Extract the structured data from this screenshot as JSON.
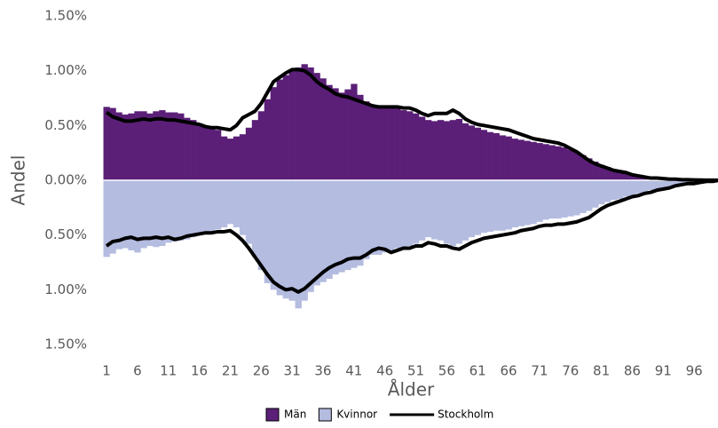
{
  "chart_data": {
    "type": "bar",
    "x_label": "Ålder",
    "y_label": "Andel",
    "categories": [
      1,
      null,
      null,
      null,
      null,
      6,
      null,
      null,
      null,
      null,
      11,
      null,
      null,
      null,
      null,
      16,
      null,
      null,
      null,
      null,
      21,
      null,
      null,
      null,
      null,
      26,
      null,
      null,
      null,
      null,
      31,
      null,
      null,
      null,
      null,
      36,
      null,
      null,
      null,
      null,
      41,
      null,
      null,
      null,
      null,
      46,
      null,
      null,
      null,
      null,
      51,
      null,
      null,
      null,
      null,
      56,
      null,
      null,
      null,
      null,
      61,
      null,
      null,
      null,
      null,
      66,
      null,
      null,
      null,
      null,
      71,
      null,
      null,
      null,
      null,
      76,
      null,
      null,
      null,
      null,
      81,
      null,
      null,
      null,
      null,
      86,
      null,
      null,
      null,
      null,
      91,
      null,
      null,
      null,
      null,
      96,
      null,
      null,
      null,
      null
    ],
    "ylim": [
      -1.5,
      1.5
    ],
    "yticks": [
      {
        "value": -1.5,
        "label": "1.50%"
      },
      {
        "value": -1.0,
        "label": "1.00%"
      },
      {
        "value": -0.5,
        "label": "0.50%"
      },
      {
        "value": 0,
        "label": "0.00%"
      },
      {
        "value": 0.5,
        "label": "0.50%"
      },
      {
        "value": 1.0,
        "label": "1.00%"
      },
      {
        "value": 1.5,
        "label": "1.50%"
      }
    ],
    "grid": false,
    "legend": "bottom",
    "series": [
      {
        "name": "Män",
        "type": "bar",
        "color": "#5b1f78",
        "values": [
          0.67,
          0.66,
          0.62,
          0.6,
          0.61,
          0.63,
          0.63,
          0.61,
          0.63,
          0.64,
          0.62,
          0.62,
          0.61,
          0.57,
          0.55,
          0.52,
          0.5,
          0.47,
          0.46,
          0.4,
          0.38,
          0.4,
          0.42,
          0.48,
          0.55,
          0.63,
          0.74,
          0.85,
          0.92,
          0.96,
          1.0,
          1.03,
          1.06,
          1.03,
          0.98,
          0.93,
          0.87,
          0.84,
          0.8,
          0.83,
          0.88,
          0.78,
          0.72,
          0.68,
          0.67,
          0.67,
          0.66,
          0.66,
          0.64,
          0.63,
          0.61,
          0.58,
          0.55,
          0.54,
          0.55,
          0.54,
          0.55,
          0.56,
          0.52,
          0.5,
          0.48,
          0.46,
          0.44,
          0.43,
          0.41,
          0.4,
          0.38,
          0.37,
          0.36,
          0.35,
          0.34,
          0.33,
          0.32,
          0.31,
          0.3,
          0.28,
          0.26,
          0.23,
          0.2,
          0.17,
          0.14,
          0.12,
          0.1,
          0.08,
          0.07,
          0.06,
          0.05,
          0.04,
          0.03,
          0.02,
          0.02,
          0.015,
          0.01,
          0.01,
          0.01,
          0.005,
          0.003,
          0.002,
          0.001,
          0.001
        ]
      },
      {
        "name": "Kvinnor",
        "type": "bar",
        "color": "#b4bce0",
        "values": [
          -0.7,
          -0.67,
          -0.63,
          -0.62,
          -0.64,
          -0.66,
          -0.62,
          -0.6,
          -0.61,
          -0.6,
          -0.57,
          -0.56,
          -0.55,
          -0.54,
          -0.52,
          -0.5,
          -0.48,
          -0.47,
          -0.45,
          -0.43,
          -0.4,
          -0.43,
          -0.5,
          -0.58,
          -0.7,
          -0.82,
          -0.94,
          -1.0,
          -1.05,
          -1.08,
          -1.1,
          -1.17,
          -1.1,
          -1.02,
          -0.96,
          -0.93,
          -0.9,
          -0.86,
          -0.84,
          -0.82,
          -0.8,
          -0.78,
          -0.72,
          -0.68,
          -0.68,
          -0.66,
          -0.64,
          -0.62,
          -0.62,
          -0.6,
          -0.58,
          -0.55,
          -0.52,
          -0.54,
          -0.55,
          -0.58,
          -0.6,
          -0.58,
          -0.55,
          -0.52,
          -0.5,
          -0.48,
          -0.47,
          -0.46,
          -0.46,
          -0.45,
          -0.43,
          -0.42,
          -0.41,
          -0.4,
          -0.38,
          -0.36,
          -0.35,
          -0.35,
          -0.34,
          -0.33,
          -0.32,
          -0.3,
          -0.28,
          -0.25,
          -0.22,
          -0.2,
          -0.18,
          -0.17,
          -0.15,
          -0.14,
          -0.12,
          -0.11,
          -0.09,
          -0.08,
          -0.07,
          -0.06,
          -0.05,
          -0.04,
          -0.03,
          -0.03,
          -0.02,
          -0.01,
          -0.01,
          -0.005
        ]
      },
      {
        "name": "Stockholm",
        "type": "line",
        "color": "#000000",
        "values": [
          0.62,
          0.58,
          0.56,
          0.54,
          0.54,
          0.55,
          0.56,
          0.55,
          0.56,
          0.56,
          0.55,
          0.55,
          0.54,
          0.53,
          0.52,
          0.51,
          0.49,
          0.48,
          0.48,
          0.47,
          0.46,
          0.5,
          0.57,
          0.6,
          0.63,
          0.7,
          0.8,
          0.9,
          0.94,
          0.98,
          1.01,
          1.01,
          1.0,
          0.96,
          0.9,
          0.86,
          0.83,
          0.79,
          0.77,
          0.76,
          0.74,
          0.72,
          0.7,
          0.68,
          0.67,
          0.67,
          0.67,
          0.67,
          0.66,
          0.66,
          0.64,
          0.61,
          0.59,
          0.61,
          0.61,
          0.61,
          0.64,
          0.61,
          0.56,
          0.53,
          0.51,
          0.5,
          0.49,
          0.48,
          0.47,
          0.46,
          0.44,
          0.42,
          0.4,
          0.38,
          0.37,
          0.36,
          0.35,
          0.34,
          0.32,
          0.29,
          0.26,
          0.22,
          0.18,
          0.15,
          0.13,
          0.11,
          0.09,
          0.08,
          0.07,
          0.05,
          0.04,
          0.03,
          0.02,
          0.02,
          0.015,
          0.01,
          0.01,
          0.005,
          0.005,
          0.003,
          0.002,
          0.001,
          0.001,
          0
        ],
        "values_below": [
          -0.6,
          -0.56,
          -0.55,
          -0.53,
          -0.52,
          -0.54,
          -0.53,
          -0.53,
          -0.52,
          -0.53,
          -0.52,
          -0.54,
          -0.53,
          -0.51,
          -0.5,
          -0.49,
          -0.48,
          -0.48,
          -0.47,
          -0.47,
          -0.46,
          -0.5,
          -0.55,
          -0.62,
          -0.7,
          -0.78,
          -0.86,
          -0.93,
          -0.97,
          -1.0,
          -0.99,
          -1.02,
          -0.99,
          -0.94,
          -0.89,
          -0.84,
          -0.8,
          -0.77,
          -0.75,
          -0.72,
          -0.71,
          -0.71,
          -0.68,
          -0.64,
          -0.62,
          -0.63,
          -0.66,
          -0.64,
          -0.62,
          -0.62,
          -0.6,
          -0.6,
          -0.57,
          -0.58,
          -0.6,
          -0.6,
          -0.62,
          -0.63,
          -0.6,
          -0.57,
          -0.55,
          -0.53,
          -0.52,
          -0.51,
          -0.5,
          -0.49,
          -0.48,
          -0.46,
          -0.45,
          -0.44,
          -0.42,
          -0.41,
          -0.41,
          -0.4,
          -0.4,
          -0.39,
          -0.38,
          -0.36,
          -0.34,
          -0.3,
          -0.26,
          -0.23,
          -0.21,
          -0.19,
          -0.17,
          -0.15,
          -0.14,
          -0.12,
          -0.11,
          -0.09,
          -0.08,
          -0.07,
          -0.05,
          -0.04,
          -0.03,
          -0.03,
          -0.02,
          -0.01,
          -0.01,
          0
        ]
      }
    ]
  }
}
